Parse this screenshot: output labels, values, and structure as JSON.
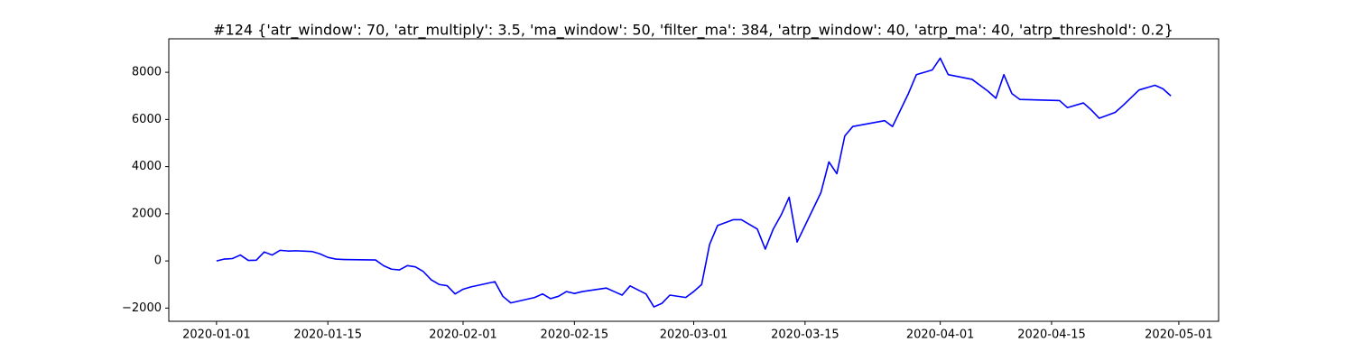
{
  "chart_data": {
    "type": "line",
    "title": "#124 {'atr_window': 70, 'atr_multiply': 3.5, 'ma_window': 50, 'filter_ma': 384, 'atrp_window': 40, 'atrp_ma': 40, 'atrp_threshold': 0.2}",
    "x": [
      "2020-01-01",
      "2020-01-02",
      "2020-01-03",
      "2020-01-04",
      "2020-01-05",
      "2020-01-06",
      "2020-01-07",
      "2020-01-08",
      "2020-01-09",
      "2020-01-10",
      "2020-01-11",
      "2020-01-13",
      "2020-01-14",
      "2020-01-15",
      "2020-01-16",
      "2020-01-17",
      "2020-01-21",
      "2020-01-22",
      "2020-01-23",
      "2020-01-24",
      "2020-01-25",
      "2020-01-26",
      "2020-01-27",
      "2020-01-28",
      "2020-01-29",
      "2020-01-30",
      "2020-01-31",
      "2020-02-01",
      "2020-02-02",
      "2020-02-05",
      "2020-02-06",
      "2020-02-07",
      "2020-02-10",
      "2020-02-11",
      "2020-02-12",
      "2020-02-13",
      "2020-02-14",
      "2020-02-15",
      "2020-02-16",
      "2020-02-19",
      "2020-02-20",
      "2020-02-21",
      "2020-02-22",
      "2020-02-24",
      "2020-02-25",
      "2020-02-26",
      "2020-02-27",
      "2020-02-29",
      "2020-03-01",
      "2020-03-02",
      "2020-03-03",
      "2020-03-04",
      "2020-03-06",
      "2020-03-07",
      "2020-03-09",
      "2020-03-10",
      "2020-03-11",
      "2020-03-12",
      "2020-03-13",
      "2020-03-14",
      "2020-03-17",
      "2020-03-18",
      "2020-03-19",
      "2020-03-20",
      "2020-03-21",
      "2020-03-25",
      "2020-03-26",
      "2020-03-27",
      "2020-03-28",
      "2020-03-29",
      "2020-03-30",
      "2020-03-31",
      "2020-04-01",
      "2020-04-02",
      "2020-04-05",
      "2020-04-07",
      "2020-04-08",
      "2020-04-09",
      "2020-04-10",
      "2020-04-11",
      "2020-04-16",
      "2020-04-17",
      "2020-04-19",
      "2020-04-20",
      "2020-04-21",
      "2020-04-23",
      "2020-04-24",
      "2020-04-26",
      "2020-04-28",
      "2020-04-29",
      "2020-04-30"
    ],
    "series": [
      {
        "color": "#0000ff",
        "values": [
          0,
          80,
          100,
          250,
          20,
          30,
          380,
          250,
          450,
          420,
          430,
          400,
          300,
          150,
          80,
          60,
          40,
          -200,
          -350,
          -380,
          -200,
          -250,
          -450,
          -800,
          -1000,
          -1050,
          -1400,
          -1200,
          -1100,
          -880,
          -1500,
          -1780,
          -1550,
          -1400,
          -1600,
          -1500,
          -1300,
          -1380,
          -1300,
          -1150,
          -1300,
          -1450,
          -1060,
          -1400,
          -1950,
          -1800,
          -1450,
          -1550,
          -1300,
          -1000,
          700,
          1500,
          1750,
          1750,
          1350,
          500,
          1350,
          1950,
          2700,
          800,
          2900,
          4200,
          3700,
          5300,
          5700,
          5950,
          5700,
          6400,
          7100,
          7900,
          8000,
          8100,
          8600,
          7900,
          7700,
          7200,
          6900,
          7900,
          7100,
          6850,
          6800,
          6500,
          6700,
          6400,
          6050,
          6300,
          6600,
          7250,
          7450,
          7300,
          7000
        ]
      }
    ],
    "xlim": [
      "2019-12-26",
      "2020-05-06"
    ],
    "xticks": [
      "2020-01-01",
      "2020-01-15",
      "2020-02-01",
      "2020-02-15",
      "2020-03-01",
      "2020-03-15",
      "2020-04-01",
      "2020-04-15",
      "2020-05-01"
    ],
    "ylim": [
      -2560,
      9420
    ],
    "yticks": [
      {
        "value": -2000,
        "label": "−2000"
      },
      0,
      2000,
      4000,
      6000,
      8000
    ]
  }
}
